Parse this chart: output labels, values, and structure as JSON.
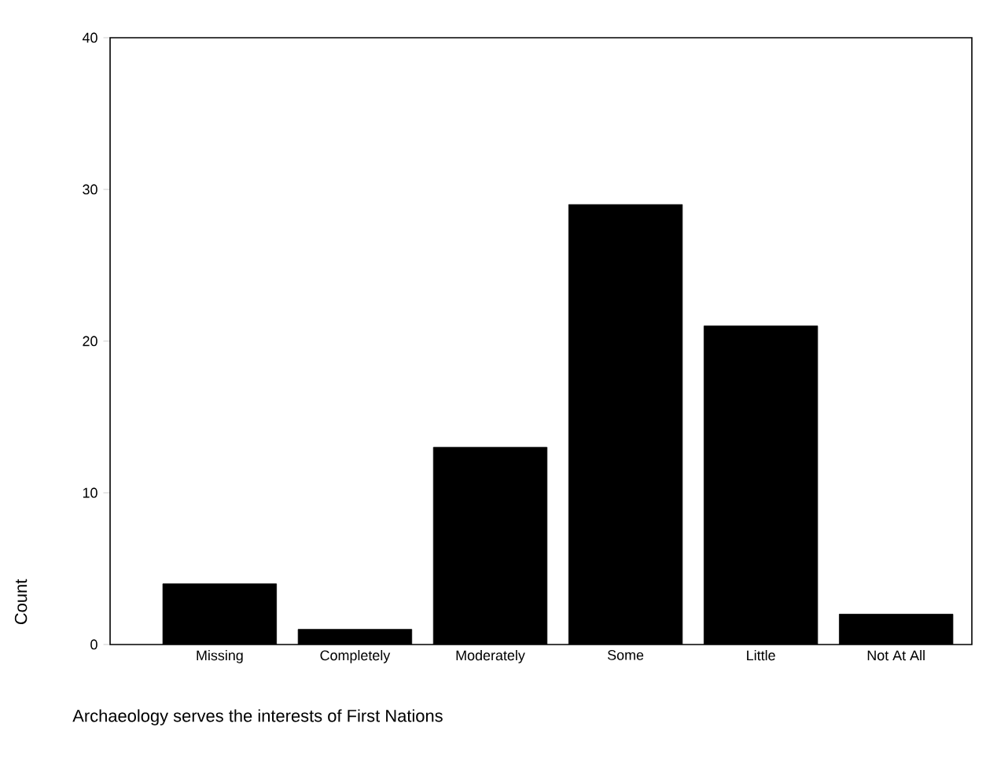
{
  "chart_data": {
    "type": "bar",
    "xlabel": "Archaeology serves the interests of First Nations",
    "ylabel": "Count",
    "categories": [
      "Missing",
      "Completely",
      "Moderately",
      "Some",
      "Little",
      "Not At All"
    ],
    "values": [
      4,
      1,
      13,
      29,
      21,
      2
    ],
    "color": "#000000",
    "ylim": [
      0,
      40
    ],
    "yticks": [
      0,
      10,
      20,
      30,
      40
    ]
  }
}
